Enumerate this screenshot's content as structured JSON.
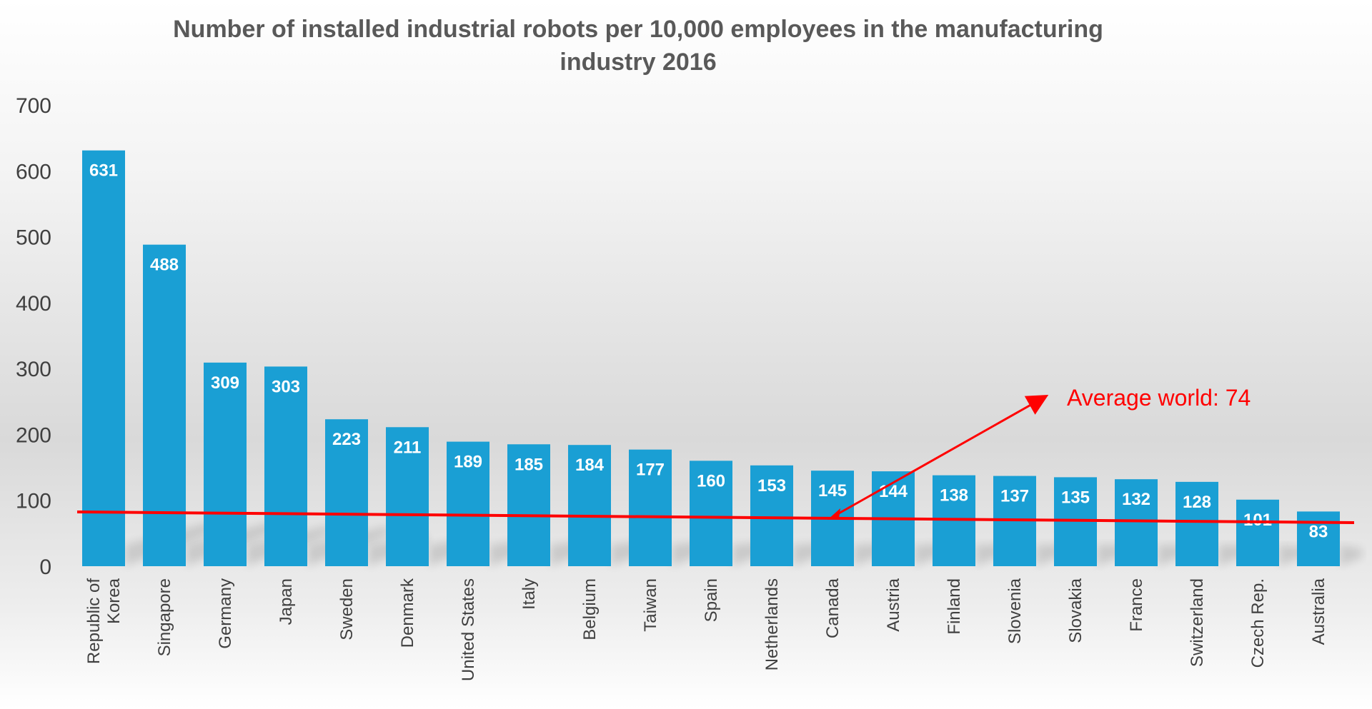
{
  "chart_data": {
    "type": "bar",
    "title_lines": [
      "Number of installed industrial robots per 10,000 employees in the manufacturing",
      "industry 2016"
    ],
    "xlabel": "",
    "ylabel": "",
    "ylim": [
      0,
      700
    ],
    "yticks": [
      0,
      100,
      200,
      300,
      400,
      500,
      600,
      700
    ],
    "grid": false,
    "legend": "none",
    "bar_color": "#1a9fd4",
    "categories": [
      [
        "Republic of",
        "Korea"
      ],
      [
        "Singapore"
      ],
      [
        "Germany"
      ],
      [
        "Japan"
      ],
      [
        "Sweden"
      ],
      [
        "Denmark"
      ],
      [
        "United States"
      ],
      [
        "Italy"
      ],
      [
        "Belgium"
      ],
      [
        "Taiwan"
      ],
      [
        "Spain"
      ],
      [
        "Netherlands"
      ],
      [
        "Canada"
      ],
      [
        "Austria"
      ],
      [
        "Finland"
      ],
      [
        "Slovenia"
      ],
      [
        "Slovakia"
      ],
      [
        "France"
      ],
      [
        "Switzerland"
      ],
      [
        "Czech Rep."
      ],
      [
        "Australia"
      ]
    ],
    "values": [
      631,
      488,
      309,
      303,
      223,
      211,
      189,
      185,
      184,
      177,
      160,
      153,
      145,
      144,
      138,
      137,
      135,
      132,
      128,
      101,
      83
    ],
    "average_line": {
      "value": 74,
      "label": "Average world: 74",
      "color": "#ff0000"
    }
  }
}
